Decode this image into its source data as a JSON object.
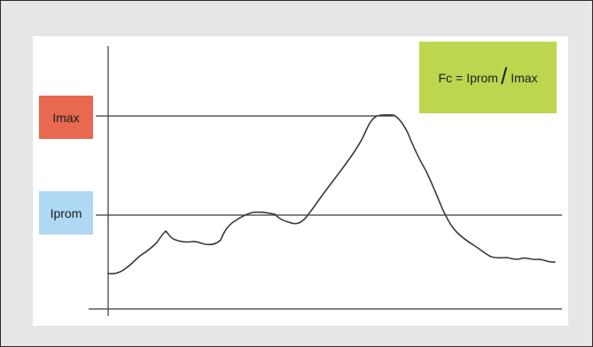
{
  "colors": {
    "background": "#e6e6e6",
    "panel": "#ffffff",
    "imax_fill": "#e8694f",
    "iprom_fill": "#aed8f3",
    "formula_fill": "#bcd650",
    "line": "#3a3a3a"
  },
  "labels": {
    "imax": "Imax",
    "iprom": "Iprom"
  },
  "formula": {
    "lhs": "Fc",
    "equals": "=",
    "numerator": "Iprom",
    "slash": "/",
    "denominator": "Imax"
  }
}
